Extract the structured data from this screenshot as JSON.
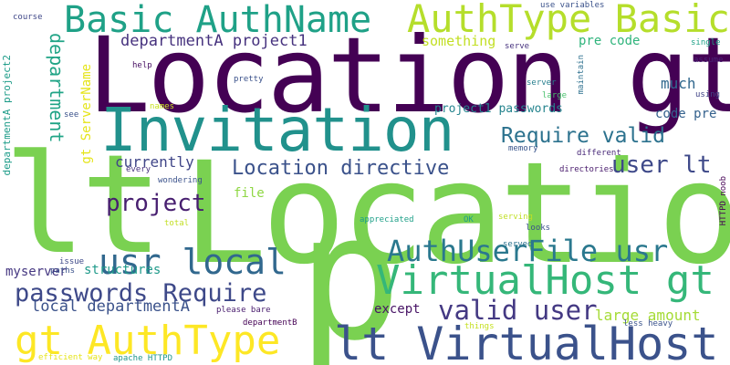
{
  "words": [
    {
      "text": "Location gt",
      "color": "#440154"
    },
    {
      "text": "Location",
      "color": "#7ad151"
    },
    {
      "text": "lt",
      "color": "#7ad151"
    },
    {
      "text": "p",
      "color": "#7ad151"
    },
    {
      "text": "Invitation",
      "color": "#21918c"
    },
    {
      "text": "Basic AuthName",
      "color": "#1fa187"
    },
    {
      "text": "AuthType Basic",
      "color": "#b5de2b"
    },
    {
      "text": "lt VirtualHost",
      "color": "#3b528b"
    },
    {
      "text": "gt AuthType",
      "color": "#fde725"
    },
    {
      "text": "VirtualHost gt",
      "color": "#35b779"
    },
    {
      "text": "AuthUserFile usr",
      "color": "#2a788e"
    },
    {
      "text": "usr local",
      "color": "#31688e"
    },
    {
      "text": "passwords Require",
      "color": "#3e4989"
    },
    {
      "text": "Require valid",
      "color": "#2c728e"
    },
    {
      "text": "valid user",
      "color": "#443983"
    },
    {
      "text": "Location directive",
      "color": "#3b528b"
    },
    {
      "text": "user lt",
      "color": "#3e4989"
    },
    {
      "text": "project",
      "color": "#481f70"
    },
    {
      "text": "departmentA project1",
      "color": "#46327e"
    },
    {
      "text": "department",
      "color": "#20a486"
    },
    {
      "text": "local departmentA",
      "color": "#3b528b"
    },
    {
      "text": "large amount",
      "color": "#a5db36"
    },
    {
      "text": "something",
      "color": "#c2df23"
    },
    {
      "text": "pre code",
      "color": "#2fb47c"
    },
    {
      "text": "much",
      "color": "#31688e"
    },
    {
      "text": "code pre",
      "color": "#34618d"
    },
    {
      "text": "project1 passwords",
      "color": "#25848e"
    },
    {
      "text": "currently",
      "color": "#404688"
    },
    {
      "text": "structures",
      "color": "#1f9a8a"
    },
    {
      "text": "file",
      "color": "#8fd744"
    },
    {
      "text": "except",
      "color": "#471365"
    },
    {
      "text": "myserver",
      "color": "#453781"
    },
    {
      "text": "gt ServerName",
      "color": "#e5e419"
    },
    {
      "text": "departmentA project2",
      "color": "#1e9c89"
    },
    {
      "text": "course",
      "color": "#3f4788"
    },
    {
      "text": "use variables",
      "color": "#3b528b"
    },
    {
      "text": "serve",
      "color": "#46327e"
    },
    {
      "text": "single",
      "color": "#1fa187"
    },
    {
      "text": "assume",
      "color": "#482475"
    },
    {
      "text": "maintain",
      "color": "#2d708e"
    },
    {
      "text": "server",
      "color": "#277f8e"
    },
    {
      "text": "large",
      "color": "#4ac16d"
    },
    {
      "text": "using",
      "color": "#414487"
    },
    {
      "text": "help",
      "color": "#471063"
    },
    {
      "text": "pretty",
      "color": "#3b528b"
    },
    {
      "text": "names",
      "color": "#c8e020"
    },
    {
      "text": "see",
      "color": "#3b528b"
    },
    {
      "text": "memory",
      "color": "#39558c"
    },
    {
      "text": "different",
      "color": "#482878"
    },
    {
      "text": "directories",
      "color": "#481a6c"
    },
    {
      "text": "HTTPD noob",
      "color": "#440154"
    },
    {
      "text": "every",
      "color": "#46307e"
    },
    {
      "text": "wondering",
      "color": "#3b528b"
    },
    {
      "text": "appreciated",
      "color": "#1fa088"
    },
    {
      "text": "OK",
      "color": "#1f9e89"
    },
    {
      "text": "serving",
      "color": "#c0df25"
    },
    {
      "text": "looks",
      "color": "#3b528b"
    },
    {
      "text": "served",
      "color": "#2c728e"
    },
    {
      "text": "total",
      "color": "#c2df23"
    },
    {
      "text": "paths",
      "color": "#3b528b"
    },
    {
      "text": "issue",
      "color": "#3e4a89"
    },
    {
      "text": "please bare",
      "color": "#481b6d"
    },
    {
      "text": "departmentB",
      "color": "#440154"
    },
    {
      "text": "things",
      "color": "#c5e021"
    },
    {
      "text": "less heavy",
      "color": "#3a538b"
    },
    {
      "text": "efficient way",
      "color": "#e5e419"
    },
    {
      "text": "apache HTTPD",
      "color": "#1f968b"
    }
  ]
}
